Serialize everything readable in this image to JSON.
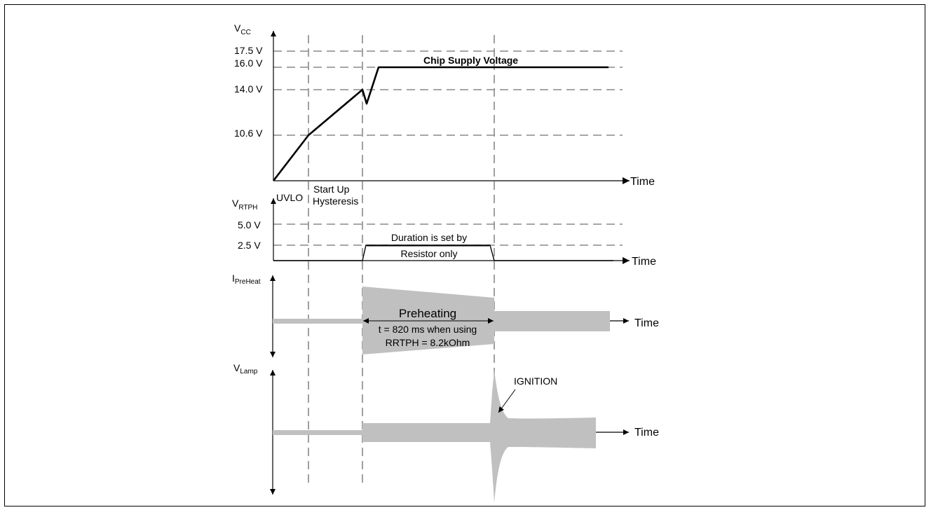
{
  "vcc": {
    "axis_label": "V",
    "axis_sub": "CC",
    "levels": [
      "17.5 V",
      "16.0 V",
      "14.0 V",
      "10.6 V"
    ],
    "curve_label": "Chip Supply  Voltage",
    "time_label": "Time"
  },
  "phases": {
    "uvlo": "UVLO",
    "startup_line1": "Start Up",
    "startup_line2": "Hysteresis"
  },
  "vrtph": {
    "axis_label": "V",
    "axis_sub": "RTPH",
    "levels": [
      "5.0 V",
      "2.5 V"
    ],
    "note_line1": "Duration is set by",
    "note_line2": "Resistor only",
    "time_label": "Time"
  },
  "ipreheat": {
    "axis_label": "I",
    "axis_sub": "PreHeat",
    "title": "Preheating",
    "note_line1": "t = 820  ms when using",
    "note_line2": "RRTPH = 8.2kOhm",
    "time_label": "Time"
  },
  "vlamp": {
    "axis_label": "V",
    "axis_sub": "Lamp",
    "ignition": "IGNITION",
    "time_label": "Time"
  },
  "colors": {
    "band": "#c0c0c0",
    "grid": "#888888",
    "trace": "#000000"
  }
}
